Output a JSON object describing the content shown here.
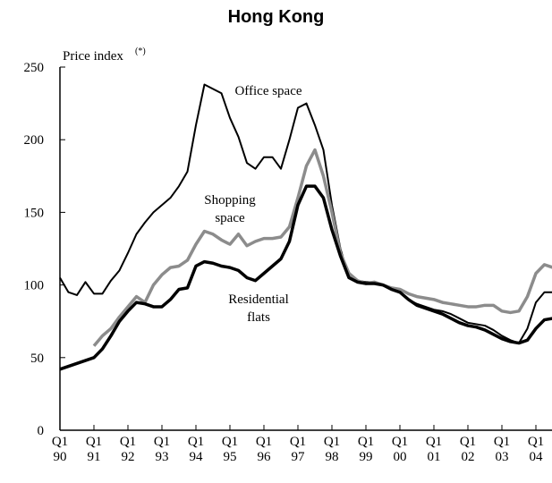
{
  "chart_data": {
    "type": "line",
    "title": "Hong Kong",
    "y_label": "Price index",
    "y_label_note": "(*)",
    "annotations": [
      "Office space",
      "Shopping",
      "space",
      "Residential",
      "flats"
    ],
    "categories": [
      "Q1 90",
      null,
      null,
      null,
      "Q1 91",
      null,
      null,
      null,
      "Q1 92",
      null,
      null,
      null,
      "Q1 93",
      null,
      null,
      null,
      "Q1 94",
      null,
      null,
      null,
      "Q1 95",
      null,
      null,
      null,
      "Q1 96",
      null,
      null,
      null,
      "Q1 97",
      null,
      null,
      null,
      "Q1 98",
      null,
      null,
      null,
      "Q1 99",
      null,
      null,
      null,
      "Q1 00",
      null,
      null,
      null,
      "Q1 01",
      null,
      null,
      null,
      "Q1 02",
      null,
      null,
      null,
      "Q1 03",
      null,
      null,
      null,
      "Q1 04",
      null,
      null
    ],
    "series": [
      {
        "color": "#000000",
        "values": [
          105,
          95,
          93,
          102,
          94,
          94,
          103,
          110,
          122,
          135,
          143,
          150,
          155,
          160,
          168,
          178,
          210,
          238,
          235,
          232,
          215,
          202,
          184,
          180,
          188,
          188,
          180,
          200,
          222,
          225,
          210,
          193,
          155,
          125,
          105,
          103,
          102,
          102,
          100,
          97,
          95,
          90,
          87,
          85,
          83,
          82,
          80,
          77,
          74,
          73,
          72,
          69,
          65,
          62,
          60,
          70,
          88,
          95,
          95
        ]
      },
      {
        "color": "#8c8c8c",
        "values": [
          null,
          null,
          null,
          null,
          58,
          65,
          70,
          78,
          85,
          92,
          88,
          100,
          107,
          112,
          113,
          117,
          128,
          137,
          135,
          131,
          128,
          135,
          127,
          130,
          132,
          132,
          133,
          140,
          160,
          182,
          193,
          175,
          150,
          122,
          108,
          103,
          101,
          102,
          100,
          98,
          97,
          94,
          92,
          91,
          90,
          88,
          87,
          86,
          85,
          85,
          86,
          86,
          82,
          81,
          82,
          92,
          108,
          114,
          112
        ]
      },
      {
        "color": "#000000",
        "values": [
          42,
          44,
          46,
          48,
          50,
          56,
          65,
          75,
          82,
          88,
          87,
          85,
          85,
          90,
          97,
          98,
          113,
          116,
          115,
          113,
          112,
          110,
          105,
          103,
          108,
          113,
          118,
          130,
          155,
          168,
          168,
          160,
          138,
          120,
          105,
          102,
          101,
          101,
          100,
          97,
          95,
          90,
          86,
          84,
          82,
          80,
          77,
          74,
          72,
          71,
          69,
          66,
          63,
          61,
          60,
          62,
          70,
          76,
          77
        ]
      }
    ],
    "ylim": [
      0,
      250
    ],
    "yticks": [
      0,
      50,
      100,
      150,
      200,
      250
    ]
  }
}
